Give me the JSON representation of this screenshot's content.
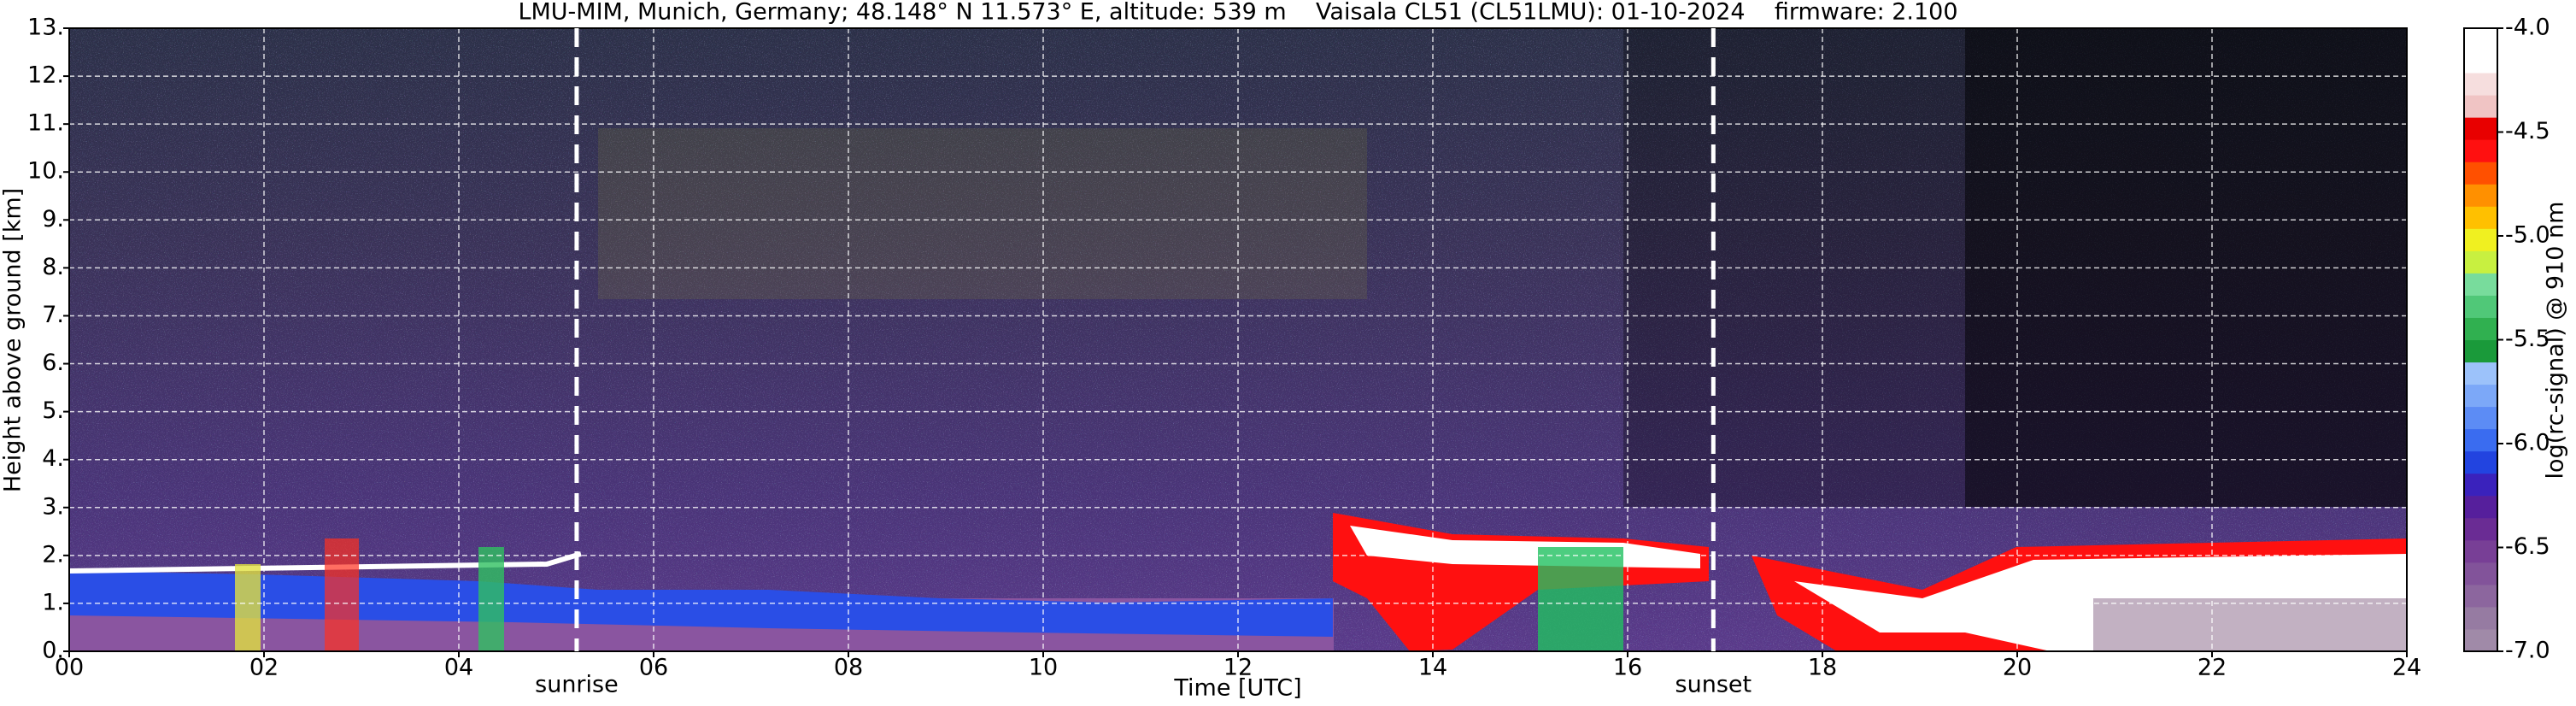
{
  "chart_data": {
    "type": "heatmap",
    "title": "LMU-MIM, Munich, Germany; 48.148° N 11.573° E, altitude: 539 m    Vaisala CL51 (CL51LMU): 01-10-2024    firmware: 2.100",
    "xlabel": "Time [UTC]",
    "ylabel": "Height above ground [km]",
    "xlim": [
      0,
      24
    ],
    "xticks": [
      {
        "value": 0,
        "label": "00"
      },
      {
        "value": 2,
        "label": "02"
      },
      {
        "value": 4,
        "label": "04"
      },
      {
        "value": 6,
        "label": "06"
      },
      {
        "value": 8,
        "label": "08"
      },
      10,
      12,
      14,
      16,
      18,
      20,
      22,
      24
    ],
    "ylim": [
      0,
      13
    ],
    "yticks": [
      {
        "value": 0,
        "label": "0."
      },
      {
        "value": 1,
        "label": "1."
      },
      {
        "value": 2,
        "label": "2."
      },
      {
        "value": 3,
        "label": "3."
      },
      {
        "value": 4,
        "label": "4."
      },
      {
        "value": 5,
        "label": "5."
      },
      {
        "value": 6,
        "label": "6."
      },
      {
        "value": 7,
        "label": "7."
      },
      {
        "value": 8,
        "label": "8."
      },
      {
        "value": 9,
        "label": "9."
      },
      {
        "value": 10,
        "label": "10."
      },
      {
        "value": 11,
        "label": "11."
      },
      {
        "value": 12,
        "label": "12."
      },
      {
        "value": 13,
        "label": "13."
      }
    ],
    "grid": true,
    "annotations": [
      {
        "text": "sunrise",
        "x": 5.21
      },
      {
        "text": "sunset",
        "x": 16.88
      }
    ],
    "colorbar": {
      "label": "log(rc-signal) @ 910 nm",
      "lim": [
        -7,
        -4
      ],
      "ticks": [
        {
          "value": -7,
          "label": "-7.0"
        },
        -6.5,
        {
          "value": -6,
          "label": "-6.0"
        },
        -5.5,
        {
          "value": -5,
          "label": "-5.0"
        },
        -4.5,
        {
          "value": -4,
          "label": "-4.0"
        }
      ],
      "colors": [
        "#a08aa8",
        "#967ba2",
        "#8c669e",
        "#82539a",
        "#783f96",
        "#6a2c94",
        "#561f9c",
        "#3a22bc",
        "#2244e0",
        "#3a6cf0",
        "#5c8cf5",
        "#7ca8f8",
        "#9cc2fa",
        "#1a9a3a",
        "#30b050",
        "#50c878",
        "#78dc9c",
        "#c8f040",
        "#f0f020",
        "#ffc000",
        "#ff9000",
        "#ff5000",
        "#ff1010",
        "#e80000",
        "#f0c4c4",
        "#f6dede",
        "#ffffff",
        "#ffffff"
      ]
    }
  }
}
